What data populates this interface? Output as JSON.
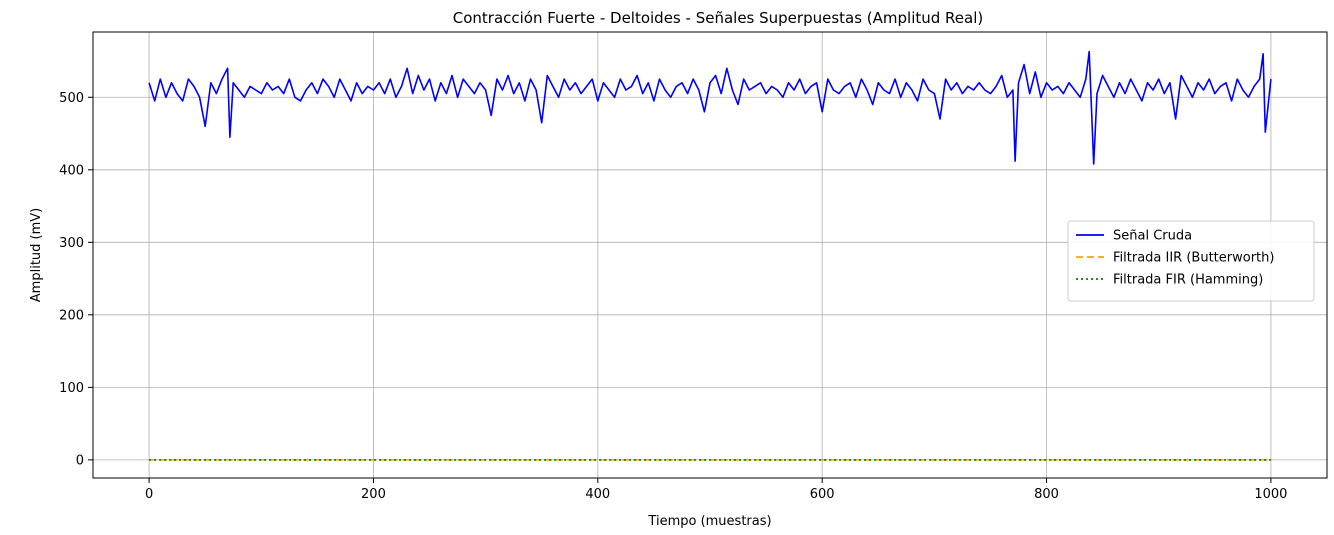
{
  "chart_data": {
    "type": "line",
    "title": "Contracción Fuerte - Deltoides - Señales Superpuestas (Amplitud Real)",
    "xlabel": "Tiempo (muestras)",
    "ylabel": "Amplitud (mV)",
    "xlim": [
      -50,
      1050
    ],
    "ylim": [
      -25,
      590
    ],
    "xticks": [
      0,
      200,
      400,
      600,
      800,
      1000
    ],
    "yticks": [
      0,
      100,
      200,
      300,
      400,
      500
    ],
    "xtick_labels": [
      "0",
      "200",
      "400",
      "600",
      "800",
      "1000"
    ],
    "ytick_labels": [
      "0",
      "100",
      "200",
      "300",
      "400",
      "500"
    ],
    "grid": true,
    "legend_position": "center-right",
    "series": [
      {
        "name": "Señal Cruda",
        "color": "#0000ff",
        "style": "solid",
        "x": [
          0,
          5,
          10,
          15,
          20,
          25,
          30,
          35,
          40,
          45,
          50,
          55,
          60,
          65,
          70,
          72,
          75,
          80,
          85,
          90,
          95,
          100,
          105,
          110,
          115,
          120,
          125,
          130,
          135,
          140,
          145,
          150,
          155,
          160,
          165,
          170,
          175,
          180,
          185,
          190,
          195,
          200,
          205,
          210,
          215,
          220,
          225,
          230,
          235,
          240,
          245,
          250,
          255,
          260,
          265,
          270,
          275,
          280,
          285,
          290,
          295,
          300,
          305,
          310,
          315,
          320,
          325,
          330,
          335,
          340,
          345,
          350,
          355,
          360,
          365,
          370,
          375,
          380,
          385,
          390,
          395,
          400,
          405,
          410,
          415,
          420,
          425,
          430,
          435,
          440,
          445,
          450,
          455,
          460,
          465,
          470,
          475,
          480,
          485,
          490,
          495,
          500,
          505,
          510,
          515,
          520,
          525,
          530,
          535,
          540,
          545,
          550,
          555,
          560,
          565,
          570,
          575,
          580,
          585,
          590,
          595,
          600,
          605,
          610,
          615,
          620,
          625,
          630,
          635,
          640,
          645,
          650,
          655,
          660,
          665,
          670,
          675,
          680,
          685,
          690,
          695,
          700,
          705,
          710,
          715,
          720,
          725,
          730,
          735,
          740,
          745,
          750,
          755,
          760,
          765,
          770,
          772,
          775,
          780,
          785,
          790,
          795,
          800,
          805,
          810,
          815,
          820,
          825,
          830,
          835,
          838,
          842,
          845,
          850,
          855,
          860,
          865,
          870,
          875,
          880,
          885,
          890,
          895,
          900,
          905,
          910,
          915,
          920,
          925,
          930,
          935,
          940,
          945,
          950,
          955,
          960,
          965,
          970,
          975,
          980,
          985,
          990,
          993,
          995,
          1000
        ],
        "values": [
          520,
          495,
          525,
          500,
          520,
          505,
          495,
          525,
          515,
          500,
          460,
          520,
          505,
          525,
          540,
          445,
          520,
          510,
          500,
          515,
          510,
          505,
          520,
          510,
          515,
          505,
          525,
          500,
          495,
          510,
          520,
          505,
          525,
          515,
          500,
          525,
          510,
          495,
          520,
          505,
          515,
          510,
          520,
          505,
          525,
          500,
          515,
          540,
          505,
          530,
          510,
          525,
          495,
          520,
          505,
          530,
          500,
          525,
          515,
          505,
          520,
          510,
          475,
          525,
          510,
          530,
          505,
          520,
          495,
          525,
          510,
          465,
          530,
          515,
          500,
          525,
          510,
          520,
          505,
          515,
          525,
          495,
          520,
          510,
          500,
          525,
          510,
          515,
          530,
          505,
          520,
          495,
          525,
          510,
          500,
          515,
          520,
          505,
          525,
          510,
          480,
          520,
          530,
          505,
          540,
          510,
          490,
          525,
          510,
          515,
          520,
          505,
          515,
          510,
          500,
          520,
          510,
          525,
          505,
          515,
          520,
          480,
          525,
          510,
          505,
          515,
          520,
          500,
          525,
          510,
          490,
          520,
          510,
          505,
          525,
          500,
          520,
          510,
          495,
          525,
          510,
          505,
          470,
          525,
          510,
          520,
          505,
          515,
          510,
          520,
          510,
          505,
          515,
          530,
          500,
          510,
          412,
          520,
          545,
          505,
          535,
          500,
          520,
          510,
          515,
          505,
          520,
          510,
          500,
          525,
          563,
          408,
          505,
          530,
          515,
          500,
          520,
          505,
          525,
          510,
          495,
          520,
          510,
          525,
          505,
          520,
          470,
          530,
          515,
          500,
          520,
          510,
          525,
          505,
          515,
          520,
          495,
          525,
          510,
          500,
          515,
          525,
          560,
          452,
          525
        ]
      },
      {
        "name": "Filtrada IIR (Butterworth)",
        "color": "#ffa500",
        "style": "dashed",
        "x": [
          0,
          1000
        ],
        "values": [
          0,
          0
        ]
      },
      {
        "name": "Filtrada FIR (Hamming)",
        "color": "#008000",
        "style": "dotted",
        "x": [
          0,
          1000
        ],
        "values": [
          0,
          0
        ]
      }
    ]
  }
}
